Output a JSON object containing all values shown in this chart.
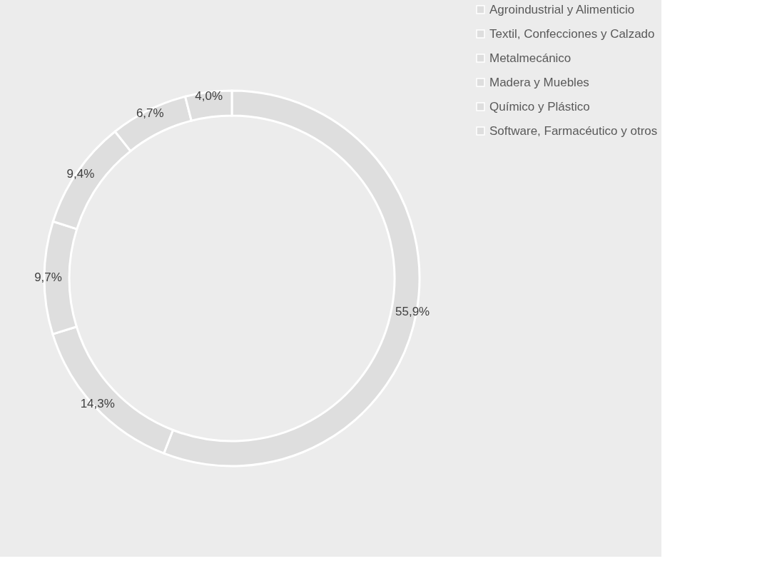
{
  "chart_data": {
    "type": "donut",
    "categories": [
      "Agroindustrial y Alimenticio",
      "Textil, Confecciones y Calzado",
      "Metalmecánico",
      "Madera y Muebles",
      "Químico y Plástico",
      "Software, Farmacéutico y otros"
    ],
    "values": [
      55.9,
      14.3,
      9.7,
      9.4,
      6.7,
      4.0
    ],
    "colors": [
      "#dedede",
      "#dedede",
      "#dedede",
      "#dedede",
      "#dedede",
      "#dedede"
    ],
    "value_labels": [
      "55,9%",
      "14,3%",
      "9,7%",
      "9,4%",
      "6,7%",
      "4,0%"
    ],
    "legend": "right"
  }
}
